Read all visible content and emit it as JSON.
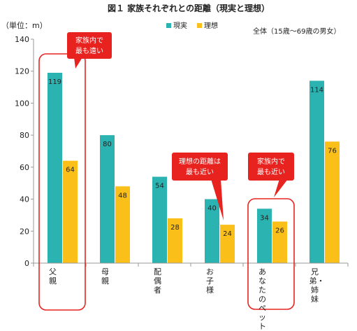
{
  "chart_data": {
    "type": "bar",
    "title": "図１ 家族それぞれとの距離（現実と理想）",
    "ylabel": "（単位：m）",
    "subtitle": "全体（15歳～69歳の男女）",
    "ylim": [
      0,
      140
    ],
    "yticks": [
      0,
      20,
      40,
      60,
      80,
      100,
      120,
      140
    ],
    "categories": [
      "父親",
      "母親",
      "配偶者",
      "お子様",
      "あなたのペット",
      "兄弟・姉妹"
    ],
    "series": [
      {
        "name": "現実",
        "values": [
          119,
          80,
          54,
          40,
          34,
          114
        ],
        "color": "#2ab3b0"
      },
      {
        "name": "理想",
        "values": [
          64,
          48,
          28,
          24,
          26,
          76
        ],
        "color": "#fbbf1a"
      }
    ],
    "legend_position": "top",
    "grid": false,
    "annotations": [
      {
        "text": "家族内で\n最も遠い",
        "target_category": 0
      },
      {
        "text": "理想の距離は\n最も近い",
        "target_category": 3
      },
      {
        "text": "家族内で\n最も近い",
        "target_category": 4
      }
    ],
    "highlight_color": "#e8231f"
  }
}
